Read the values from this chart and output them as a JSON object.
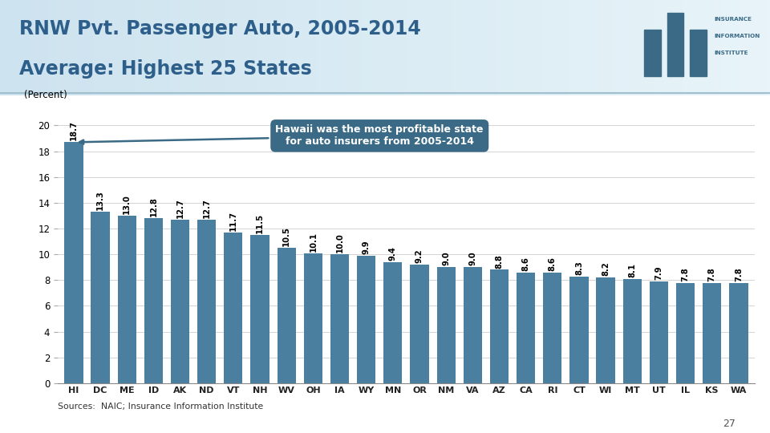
{
  "title_line1": "RNW Pvt. Passenger Auto, 2005-2014",
  "title_line2": "Average: Highest 25 States",
  "ylabel": "(Percent)",
  "categories": [
    "HI",
    "DC",
    "ME",
    "ID",
    "AK",
    "ND",
    "VT",
    "NH",
    "WV",
    "OH",
    "IA",
    "WY",
    "MN",
    "OR",
    "NM",
    "VA",
    "AZ",
    "CA",
    "RI",
    "CT",
    "WI",
    "MT",
    "UT",
    "IL",
    "KS",
    "WA"
  ],
  "values": [
    18.7,
    13.3,
    13.0,
    12.8,
    12.7,
    12.7,
    11.7,
    11.5,
    10.5,
    10.1,
    10.0,
    9.9,
    9.4,
    9.2,
    9.0,
    9.0,
    8.8,
    8.6,
    8.6,
    8.3,
    8.2,
    8.1,
    7.9,
    7.8,
    7.8,
    7.8
  ],
  "bar_color": "#4a7fa0",
  "annotation_box_color": "#3a6a85",
  "annotation_text": "Hawaii was the most profitable state\nfor auto insurers from 2005-2014",
  "source_text": "Sources:  NAIC; Insurance Information Institute",
  "page_number": "27",
  "ylim": [
    0,
    21
  ],
  "yticks": [
    0,
    2,
    4,
    6,
    8,
    10,
    12,
    14,
    16,
    18,
    20
  ],
  "title_color": "#2e5f8a",
  "header_bg_start": "#cde3ef",
  "header_bg_end": "#e8f4f9",
  "bar_value_fontsize": 7.2,
  "logo_color": "#3a6a85"
}
